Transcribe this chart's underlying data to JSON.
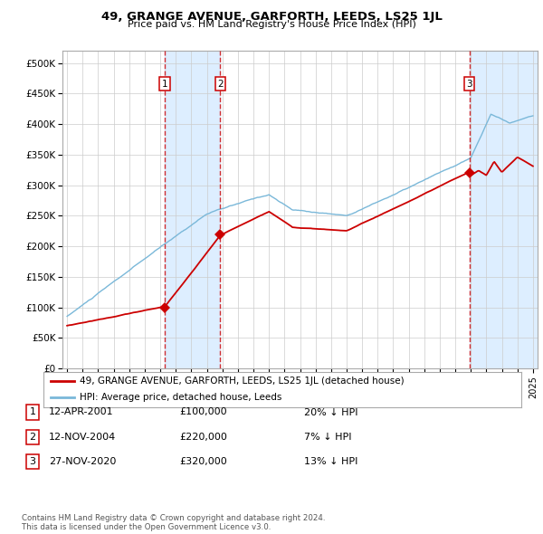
{
  "title": "49, GRANGE AVENUE, GARFORTH, LEEDS, LS25 1JL",
  "subtitle": "Price paid vs. HM Land Registry's House Price Index (HPI)",
  "sale_dates_num": [
    2001.27,
    2004.87,
    2020.9
  ],
  "sale_prices": [
    100000,
    220000,
    320000
  ],
  "sale_labels": [
    "1",
    "2",
    "3"
  ],
  "sale_info": [
    [
      "1",
      "12-APR-2001",
      "£100,000",
      "20% ↓ HPI"
    ],
    [
      "2",
      "12-NOV-2004",
      "£220,000",
      "7% ↓ HPI"
    ],
    [
      "3",
      "27-NOV-2020",
      "£320,000",
      "13% ↓ HPI"
    ]
  ],
  "legend_label_red": "49, GRANGE AVENUE, GARFORTH, LEEDS, LS25 1JL (detached house)",
  "legend_label_blue": "HPI: Average price, detached house, Leeds",
  "footer": "Contains HM Land Registry data © Crown copyright and database right 2024.\nThis data is licensed under the Open Government Licence v3.0.",
  "hpi_color": "#7ab8d9",
  "property_color": "#cc0000",
  "shade_color": "#ddeeff",
  "dashed_color": "#cc0000",
  "ylim": [
    0,
    520000
  ],
  "xlim": [
    1994.7,
    2025.3
  ],
  "yticks": [
    0,
    50000,
    100000,
    150000,
    200000,
    250000,
    300000,
    350000,
    400000,
    450000,
    500000
  ],
  "ytick_labels": [
    "£0",
    "£50K",
    "£100K",
    "£150K",
    "£200K",
    "£250K",
    "£300K",
    "£350K",
    "£400K",
    "£450K",
    "£500K"
  ],
  "xticks": [
    1995,
    1996,
    1997,
    1998,
    1999,
    2000,
    2001,
    2002,
    2003,
    2004,
    2005,
    2006,
    2007,
    2008,
    2009,
    2010,
    2011,
    2012,
    2013,
    2014,
    2015,
    2016,
    2017,
    2018,
    2019,
    2020,
    2021,
    2022,
    2023,
    2024,
    2025
  ]
}
